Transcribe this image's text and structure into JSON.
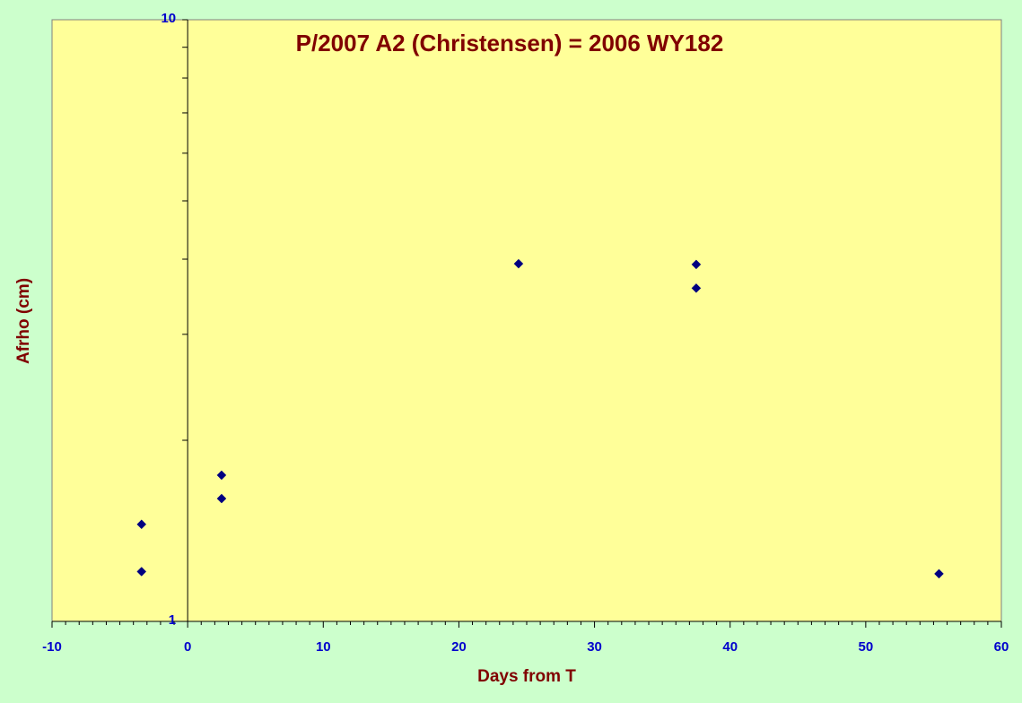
{
  "chart_data": {
    "type": "scatter",
    "title": "P/2007 A2 (Christensen) = 2006 WY182",
    "xlabel": "Days from T",
    "ylabel": "Afrho (cm)",
    "xlim": [
      -10,
      60
    ],
    "x_major_step": 10,
    "x_minor_step": 1,
    "ylim": [
      1,
      10
    ],
    "y_scale": "log",
    "x_tick_labels": [
      "-10",
      "0",
      "10",
      "20",
      "30",
      "40",
      "50",
      "60"
    ],
    "y_tick_labels": [
      "1",
      "10"
    ],
    "grid": false,
    "legend": "none",
    "series": [
      {
        "points": [
          {
            "x": -3.4,
            "y": 1.45
          },
          {
            "x": -3.4,
            "y": 1.21
          },
          {
            "x": 2.5,
            "y": 1.75
          },
          {
            "x": 2.5,
            "y": 1.6
          },
          {
            "x": 24.4,
            "y": 3.93
          },
          {
            "x": 37.5,
            "y": 3.92
          },
          {
            "x": 37.5,
            "y": 3.58
          },
          {
            "x": 55.4,
            "y": 1.2
          }
        ]
      }
    ],
    "colors": {
      "page_background": "#ccffcc",
      "plot_background": "#ffff99",
      "title": "#800000",
      "axis_title": "#800000",
      "tick_label": "#0000cc",
      "marker": "#000080",
      "axis_line": "#000000"
    }
  }
}
